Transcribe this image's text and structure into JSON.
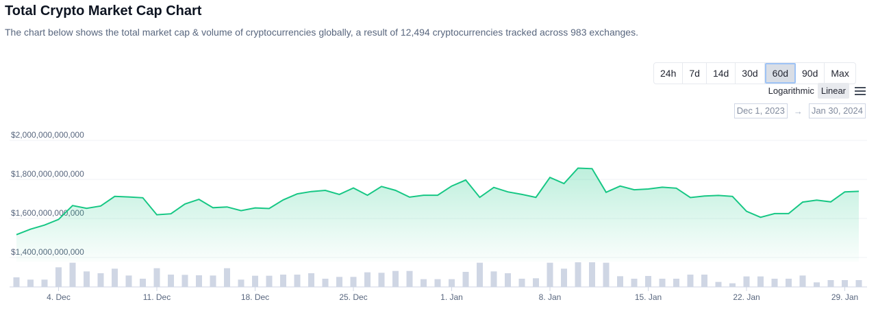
{
  "header": {
    "title": "Total Crypto Market Cap Chart",
    "description": "The chart below shows the total market cap & volume of cryptocurrencies globally, a result of 12,494 cryptocurrencies tracked across 983 exchanges."
  },
  "controls": {
    "ranges": [
      "24h",
      "7d",
      "14d",
      "30d",
      "60d",
      "90d",
      "Max"
    ],
    "active_range": "60d",
    "scales": [
      "Logarithmic",
      "Linear"
    ],
    "active_scale": "Linear",
    "date_from": "Dec 1, 2023",
    "date_arrow": "→",
    "date_to": "Jan 30, 2024"
  },
  "colors": {
    "line": "#16c784",
    "volume_bar": "#cfd6e4"
  },
  "chart_data": {
    "type": "line",
    "y_ticks": [
      "$2,000,000,000,000",
      "$1,800,000,000,000",
      "$1,600,000,000,000",
      "$1,400,000,000,000"
    ],
    "x_ticks": [
      "4. Dec",
      "11. Dec",
      "18. Dec",
      "25. Dec",
      "1. Jan",
      "8. Jan",
      "15. Jan",
      "22. Jan",
      "29. Jan"
    ],
    "ylim": [
      1400000000000,
      2000000000000
    ],
    "x_start": "2023-12-01",
    "x_end": "2024-01-30",
    "series": [
      {
        "values": [
          1517,
          1545,
          1566,
          1595,
          1666,
          1652,
          1664,
          1713,
          1710,
          1706,
          1619,
          1624,
          1674,
          1698,
          1655,
          1659,
          1640,
          1654,
          1651,
          1695,
          1726,
          1738,
          1744,
          1723,
          1756,
          1719,
          1764,
          1744,
          1709,
          1719,
          1719,
          1766,
          1797,
          1708,
          1759,
          1736,
          1723,
          1708,
          1810,
          1779,
          1858,
          1855,
          1734,
          1766,
          1747,
          1751,
          1760,
          1755,
          1707,
          1715,
          1718,
          1713,
          1637,
          1606,
          1625,
          1625,
          1684,
          1694,
          1685,
          1736,
          1739
        ]
      },
      {
        "name": "volume",
        "values": [
          4.2,
          3.2,
          3.2,
          8.6,
          10.6,
          6.8,
          6.0,
          8.0,
          5.0,
          3.6,
          8.2,
          5.4,
          5.3,
          5.1,
          5.0,
          8.2,
          3.2,
          4.9,
          4.9,
          5.4,
          5.4,
          6.0,
          3.6,
          4.4,
          4.4,
          6.4,
          6.2,
          7.0,
          7.0,
          3.4,
          3.4,
          3.4,
          6.6,
          10.6,
          6.8,
          6.0,
          3.6,
          3.8,
          10.6,
          8.0,
          10.8,
          10.8,
          10.6,
          4.7,
          3.6,
          4.8,
          3.6,
          3.6,
          5.4,
          5.4,
          2.2,
          1.6,
          4.6,
          4.6,
          3.6,
          3.6,
          5.0,
          2.0,
          3.0,
          3.0,
          3.0
        ]
      }
    ]
  }
}
